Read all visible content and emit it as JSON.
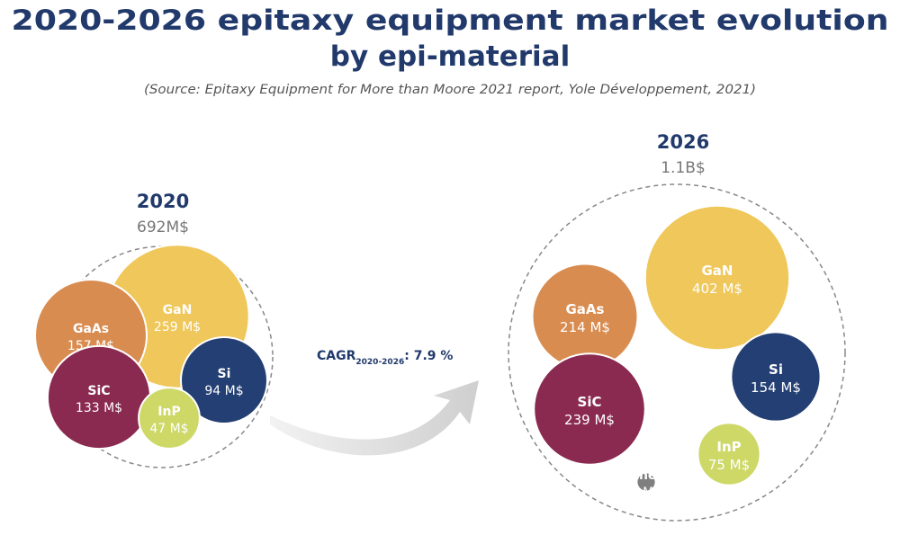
{
  "title_line1": "2020-2026 epitaxy equipment market evolution",
  "title_line2": "by epi-material",
  "source": "(Source: Epitaxy Equipment for More than Moore 2021 report, Yole Développement, 2021)",
  "cagr": {
    "prefix": "CAGR",
    "subscript": "2020-2026",
    "value": ": 7.9 %"
  },
  "colors": {
    "GaN": "#efc75a",
    "GaAs": "#d98c50",
    "SiC": "#8a2a50",
    "Si": "#243f73",
    "InP": "#cdd867",
    "Others": "#7f7f7f"
  },
  "chart_data": [
    {
      "type": "bubble",
      "year": "2020",
      "total": "692M$",
      "bubbles": [
        {
          "name": "GaN",
          "value": 259,
          "label": "259 M$"
        },
        {
          "name": "GaAs",
          "value": 157,
          "label": "157 M$"
        },
        {
          "name": "SiC",
          "value": 133,
          "label": "133 M$"
        },
        {
          "name": "Si",
          "value": 94,
          "label": "94 M$"
        },
        {
          "name": "InP",
          "value": 47,
          "label": "47 M$"
        }
      ]
    },
    {
      "type": "bubble",
      "year": "2026",
      "total": "1.1B$",
      "bubbles": [
        {
          "name": "GaN",
          "value": 402,
          "label": "402 M$"
        },
        {
          "name": "GaAs",
          "value": 214,
          "label": "214 M$"
        },
        {
          "name": "SiC",
          "value": 239,
          "label": "239 M$"
        },
        {
          "name": "Si",
          "value": 154,
          "label": "154 M$"
        },
        {
          "name": "InP",
          "value": 75,
          "label": "75 M$"
        },
        {
          "name": "Others",
          "value": 7,
          "label": "7 M$"
        }
      ]
    }
  ]
}
